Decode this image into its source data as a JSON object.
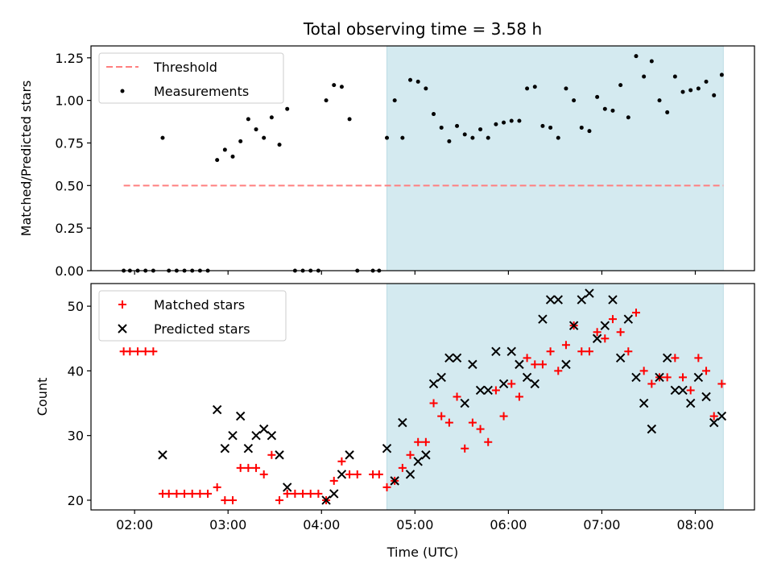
{
  "title": "Total observing time = 3.58 h",
  "colors": {
    "threshold": "#ff7f7f",
    "measurements": "#000000",
    "matched": "#ff0000",
    "predicted": "#000000",
    "shade": "#d4eaf0"
  },
  "chart_data": [
    {
      "type": "scatter",
      "title": "Total observing time = 3.58 h",
      "ylabel": "Matched/Predicted stars",
      "xlim": [
        "01:32",
        "08:38"
      ],
      "ylim": [
        0,
        1.32
      ],
      "yticks": [
        "0.00",
        "0.25",
        "0.50",
        "0.75",
        "1.00",
        "1.25"
      ],
      "legend": {
        "location": "upper-left",
        "entries": [
          "Threshold",
          "Measurements"
        ]
      },
      "shaded_interval": [
        "04:42",
        "08:18"
      ],
      "threshold": {
        "name": "Threshold",
        "y": 0.5,
        "x_start": "01:53",
        "x_end": "08:18",
        "style": "dashed"
      },
      "series": [
        {
          "name": "Measurements",
          "marker": "dot",
          "points": [
            [
              "01:53",
              0.0
            ],
            [
              "01:57",
              0.0
            ],
            [
              "02:02",
              0.0
            ],
            [
              "02:07",
              0.0
            ],
            [
              "02:12",
              0.0
            ],
            [
              "02:18",
              0.78
            ],
            [
              "02:22",
              0.0
            ],
            [
              "02:27",
              0.0
            ],
            [
              "02:32",
              0.0
            ],
            [
              "02:37",
              0.0
            ],
            [
              "02:42",
              0.0
            ],
            [
              "02:47",
              0.0
            ],
            [
              "02:53",
              0.65
            ],
            [
              "02:58",
              0.71
            ],
            [
              "03:03",
              0.67
            ],
            [
              "03:08",
              0.76
            ],
            [
              "03:13",
              0.89
            ],
            [
              "03:18",
              0.83
            ],
            [
              "03:23",
              0.78
            ],
            [
              "03:28",
              0.9
            ],
            [
              "03:33",
              0.74
            ],
            [
              "03:38",
              0.95
            ],
            [
              "03:43",
              0.0
            ],
            [
              "03:48",
              0.0
            ],
            [
              "03:53",
              0.0
            ],
            [
              "03:58",
              0.0
            ],
            [
              "04:03",
              1.0
            ],
            [
              "04:08",
              1.09
            ],
            [
              "04:13",
              1.08
            ],
            [
              "04:18",
              0.89
            ],
            [
              "04:23",
              0.0
            ],
            [
              "04:33",
              0.0
            ],
            [
              "04:37",
              0.0
            ],
            [
              "04:42",
              0.78
            ],
            [
              "04:47",
              1.0
            ],
            [
              "04:52",
              0.78
            ],
            [
              "04:57",
              1.12
            ],
            [
              "05:02",
              1.11
            ],
            [
              "05:07",
              1.07
            ],
            [
              "05:12",
              0.92
            ],
            [
              "05:17",
              0.84
            ],
            [
              "05:22",
              0.76
            ],
            [
              "05:27",
              0.85
            ],
            [
              "05:32",
              0.8
            ],
            [
              "05:37",
              0.78
            ],
            [
              "05:42",
              0.83
            ],
            [
              "05:47",
              0.78
            ],
            [
              "05:52",
              0.86
            ],
            [
              "05:57",
              0.87
            ],
            [
              "06:02",
              0.88
            ],
            [
              "06:07",
              0.88
            ],
            [
              "06:12",
              1.07
            ],
            [
              "06:17",
              1.08
            ],
            [
              "06:22",
              0.85
            ],
            [
              "06:27",
              0.84
            ],
            [
              "06:32",
              0.78
            ],
            [
              "06:37",
              1.07
            ],
            [
              "06:42",
              1.0
            ],
            [
              "06:47",
              0.84
            ],
            [
              "06:52",
              0.82
            ],
            [
              "06:57",
              1.02
            ],
            [
              "07:02",
              0.95
            ],
            [
              "07:07",
              0.94
            ],
            [
              "07:12",
              1.09
            ],
            [
              "07:17",
              0.9
            ],
            [
              "07:22",
              1.26
            ],
            [
              "07:27",
              1.14
            ],
            [
              "07:32",
              1.23
            ],
            [
              "07:37",
              1.0
            ],
            [
              "07:42",
              0.93
            ],
            [
              "07:47",
              1.14
            ],
            [
              "07:52",
              1.05
            ],
            [
              "07:57",
              1.06
            ],
            [
              "08:02",
              1.07
            ],
            [
              "08:07",
              1.11
            ],
            [
              "08:12",
              1.03
            ],
            [
              "08:17",
              1.15
            ]
          ]
        }
      ]
    },
    {
      "type": "scatter",
      "xlabel": "Time (UTC)",
      "ylabel": "Count",
      "xlim": [
        "01:32",
        "08:38"
      ],
      "ylim": [
        18.5,
        53.5
      ],
      "xticks": [
        "02:00",
        "03:00",
        "04:00",
        "05:00",
        "06:00",
        "07:00",
        "08:00"
      ],
      "yticks": [
        "20",
        "30",
        "40",
        "50"
      ],
      "legend": {
        "location": "upper-left",
        "entries": [
          "Matched stars",
          "Predicted stars"
        ]
      },
      "shaded_interval": [
        "04:42",
        "08:18"
      ],
      "series": [
        {
          "name": "Matched stars",
          "marker": "plus",
          "points": [
            [
              "01:53",
              43
            ],
            [
              "01:57",
              43
            ],
            [
              "02:02",
              43
            ],
            [
              "02:07",
              43
            ],
            [
              "02:12",
              43
            ],
            [
              "02:18",
              21
            ],
            [
              "02:22",
              21
            ],
            [
              "02:27",
              21
            ],
            [
              "02:32",
              21
            ],
            [
              "02:37",
              21
            ],
            [
              "02:42",
              21
            ],
            [
              "02:47",
              21
            ],
            [
              "02:53",
              22
            ],
            [
              "02:58",
              20
            ],
            [
              "03:03",
              20
            ],
            [
              "03:08",
              25
            ],
            [
              "03:13",
              25
            ],
            [
              "03:18",
              25
            ],
            [
              "03:23",
              24
            ],
            [
              "03:28",
              27
            ],
            [
              "03:33",
              20
            ],
            [
              "03:38",
              21
            ],
            [
              "03:43",
              21
            ],
            [
              "03:48",
              21
            ],
            [
              "03:53",
              21
            ],
            [
              "03:58",
              21
            ],
            [
              "04:03",
              20
            ],
            [
              "04:08",
              23
            ],
            [
              "04:13",
              26
            ],
            [
              "04:18",
              24
            ],
            [
              "04:23",
              24
            ],
            [
              "04:33",
              24
            ],
            [
              "04:37",
              24
            ],
            [
              "04:42",
              22
            ],
            [
              "04:47",
              23
            ],
            [
              "04:52",
              25
            ],
            [
              "04:57",
              27
            ],
            [
              "05:02",
              29
            ],
            [
              "05:07",
              29
            ],
            [
              "05:12",
              35
            ],
            [
              "05:17",
              33
            ],
            [
              "05:22",
              32
            ],
            [
              "05:27",
              36
            ],
            [
              "05:32",
              28
            ],
            [
              "05:37",
              32
            ],
            [
              "05:42",
              31
            ],
            [
              "05:47",
              29
            ],
            [
              "05:52",
              37
            ],
            [
              "05:57",
              33
            ],
            [
              "06:02",
              38
            ],
            [
              "06:07",
              36
            ],
            [
              "06:12",
              42
            ],
            [
              "06:17",
              41
            ],
            [
              "06:22",
              41
            ],
            [
              "06:27",
              43
            ],
            [
              "06:32",
              40
            ],
            [
              "06:37",
              44
            ],
            [
              "06:42",
              47
            ],
            [
              "06:47",
              43
            ],
            [
              "06:52",
              43
            ],
            [
              "06:57",
              46
            ],
            [
              "07:02",
              45
            ],
            [
              "07:07",
              48
            ],
            [
              "07:12",
              46
            ],
            [
              "07:17",
              43
            ],
            [
              "07:22",
              49
            ],
            [
              "07:27",
              40
            ],
            [
              "07:32",
              38
            ],
            [
              "07:37",
              39
            ],
            [
              "07:42",
              39
            ],
            [
              "07:47",
              42
            ],
            [
              "07:52",
              39
            ],
            [
              "07:57",
              37
            ],
            [
              "08:02",
              42
            ],
            [
              "08:07",
              40
            ],
            [
              "08:12",
              33
            ],
            [
              "08:17",
              38
            ]
          ]
        },
        {
          "name": "Predicted stars",
          "marker": "x",
          "points": [
            [
              "02:18",
              27
            ],
            [
              "02:53",
              34
            ],
            [
              "02:58",
              28
            ],
            [
              "03:03",
              30
            ],
            [
              "03:08",
              33
            ],
            [
              "03:13",
              28
            ],
            [
              "03:18",
              30
            ],
            [
              "03:23",
              31
            ],
            [
              "03:28",
              30
            ],
            [
              "03:33",
              27
            ],
            [
              "03:38",
              22
            ],
            [
              "04:03",
              20
            ],
            [
              "04:08",
              21
            ],
            [
              "04:13",
              24
            ],
            [
              "04:18",
              27
            ],
            [
              "04:42",
              28
            ],
            [
              "04:47",
              23
            ],
            [
              "04:52",
              32
            ],
            [
              "04:57",
              24
            ],
            [
              "05:02",
              26
            ],
            [
              "05:07",
              27
            ],
            [
              "05:12",
              38
            ],
            [
              "05:17",
              39
            ],
            [
              "05:22",
              42
            ],
            [
              "05:27",
              42
            ],
            [
              "05:32",
              35
            ],
            [
              "05:37",
              41
            ],
            [
              "05:42",
              37
            ],
            [
              "05:47",
              37
            ],
            [
              "05:52",
              43
            ],
            [
              "05:57",
              38
            ],
            [
              "06:02",
              43
            ],
            [
              "06:07",
              41
            ],
            [
              "06:12",
              39
            ],
            [
              "06:17",
              38
            ],
            [
              "06:22",
              48
            ],
            [
              "06:27",
              51
            ],
            [
              "06:32",
              51
            ],
            [
              "06:37",
              41
            ],
            [
              "06:42",
              47
            ],
            [
              "06:47",
              51
            ],
            [
              "06:52",
              52
            ],
            [
              "06:57",
              45
            ],
            [
              "07:02",
              47
            ],
            [
              "07:07",
              51
            ],
            [
              "07:12",
              42
            ],
            [
              "07:17",
              48
            ],
            [
              "07:22",
              39
            ],
            [
              "07:27",
              35
            ],
            [
              "07:32",
              31
            ],
            [
              "07:37",
              39
            ],
            [
              "07:42",
              42
            ],
            [
              "07:47",
              37
            ],
            [
              "07:52",
              37
            ],
            [
              "07:57",
              35
            ],
            [
              "08:02",
              39
            ],
            [
              "08:07",
              36
            ],
            [
              "08:12",
              32
            ],
            [
              "08:17",
              33
            ]
          ]
        }
      ]
    }
  ]
}
